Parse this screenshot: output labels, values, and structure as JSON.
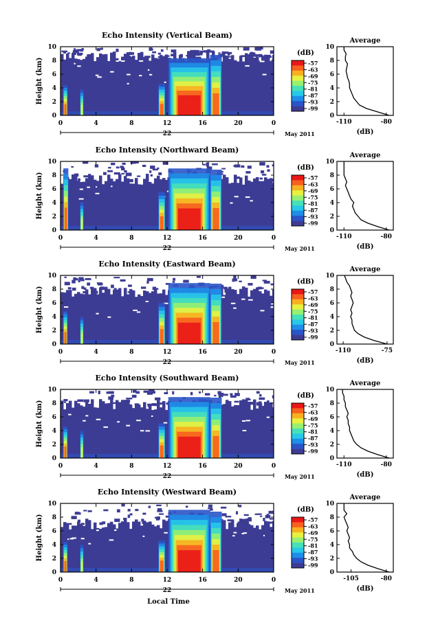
{
  "figure": {
    "x_title": "Local Time",
    "day_label": "22",
    "month_label": "May 2011",
    "colorbar_unit": "(dB)",
    "colorbar_ticks": [
      "-57",
      "-63",
      "-69",
      "-75",
      "-81",
      "-87",
      "-93",
      "-99"
    ],
    "colorbar_colors": [
      "#3d3c94",
      "#2a55c8",
      "#1e8ee8",
      "#28c8e8",
      "#48e0b8",
      "#98f070",
      "#e8f040",
      "#f8b020",
      "#f86020",
      "#e81818"
    ],
    "height_axis_label": "Height (km)",
    "avg_title": "Average",
    "avg_xlabel": "(dB)",
    "empty_color": "#ffffff",
    "background_echo_color": "#3d3c94"
  },
  "chart_data": [
    {
      "type": "heatmap",
      "title": "Echo Intensity (Vertical Beam)",
      "xlabel": "Local Time",
      "ylabel": "Height (km)",
      "xlim": [
        0,
        24
      ],
      "ylim": [
        0,
        10
      ],
      "xticks": [
        "0",
        "4",
        "8",
        "12",
        "16",
        "20",
        "0"
      ],
      "yticks": [
        "0",
        "2",
        "4",
        "6",
        "8",
        "10"
      ],
      "colorbar": {
        "label": "(dB)",
        "ticks": [
          -57,
          -63,
          -69,
          -75,
          -81,
          -87,
          -93,
          -99
        ]
      },
      "echo_top_km": 8.6,
      "convective_cells": [
        {
          "t0": 0.3,
          "t1": 0.8,
          "top_km": 4.8,
          "peak_dB": -63
        },
        {
          "t0": 2.2,
          "t1": 2.6,
          "top_km": 4.2,
          "peak_dB": -69
        },
        {
          "t0": 11.0,
          "t1": 11.8,
          "top_km": 5.0,
          "peak_dB": -63
        },
        {
          "t0": 12.0,
          "t1": 17.0,
          "top_km": 9.0,
          "peak_dB": -57
        },
        {
          "t0": 16.8,
          "t1": 18.2,
          "top_km": 9.6,
          "peak_dB": -63
        }
      ],
      "average_profile": {
        "xlabel": "(dB)",
        "xlim": [
          -115,
          -75
        ],
        "xticks": [
          -110,
          -80
        ],
        "points": [
          [
            -78,
            0.0
          ],
          [
            -86,
            0.5
          ],
          [
            -94,
            1.0
          ],
          [
            -99,
            1.5
          ],
          [
            -101,
            2.0
          ],
          [
            -103,
            2.5
          ],
          [
            -104,
            3.0
          ],
          [
            -105,
            3.5
          ],
          [
            -106,
            4.0
          ],
          [
            -106,
            4.5
          ],
          [
            -106.5,
            5.0
          ],
          [
            -107.5,
            5.5
          ],
          [
            -108,
            6.0
          ],
          [
            -108.5,
            6.5
          ],
          [
            -108,
            7.0
          ],
          [
            -107.5,
            7.5
          ],
          [
            -109,
            8.0
          ],
          [
            -109,
            8.5
          ],
          [
            -108.5,
            9.0
          ],
          [
            -110,
            9.5
          ],
          [
            -110,
            10.0
          ]
        ]
      }
    },
    {
      "type": "heatmap",
      "title": "Echo Intensity (Northward Beam)",
      "xlabel": "Local Time",
      "ylabel": "Height (km)",
      "xlim": [
        0,
        24
      ],
      "ylim": [
        0,
        10
      ],
      "xticks": [
        "0",
        "4",
        "8",
        "12",
        "16",
        "20",
        "0"
      ],
      "yticks": [
        "0",
        "2",
        "4",
        "6",
        "8",
        "10"
      ],
      "colorbar": {
        "label": "(dB)",
        "ticks": [
          -57,
          -63,
          -69,
          -75,
          -81,
          -87,
          -93,
          -99
        ]
      },
      "echo_top_km": 7.4,
      "convective_cells": [
        {
          "t0": 0.3,
          "t1": 0.9,
          "top_km": 9.8,
          "peak_dB": -63
        },
        {
          "t0": 2.2,
          "t1": 2.6,
          "top_km": 4.5,
          "peak_dB": -69
        },
        {
          "t0": 11.0,
          "t1": 11.8,
          "top_km": 6.0,
          "peak_dB": -63
        },
        {
          "t0": 12.0,
          "t1": 17.0,
          "top_km": 9.7,
          "peak_dB": -57
        },
        {
          "t0": 16.8,
          "t1": 18.2,
          "top_km": 9.6,
          "peak_dB": -63
        }
      ],
      "average_profile": {
        "xlabel": "(dB)",
        "xlim": [
          -115,
          -75
        ],
        "xticks": [
          -110,
          -80
        ],
        "points": [
          [
            -78,
            0.0
          ],
          [
            -86,
            0.5
          ],
          [
            -93,
            1.0
          ],
          [
            -98,
            1.5
          ],
          [
            -100,
            2.0
          ],
          [
            -102,
            2.5
          ],
          [
            -103,
            3.0
          ],
          [
            -104,
            3.5
          ],
          [
            -103,
            4.0
          ],
          [
            -105,
            4.5
          ],
          [
            -106,
            5.0
          ],
          [
            -107,
            5.5
          ],
          [
            -108,
            6.0
          ],
          [
            -109,
            6.5
          ],
          [
            -108,
            7.0
          ],
          [
            -109,
            7.5
          ],
          [
            -110,
            8.0
          ],
          [
            -110,
            8.5
          ],
          [
            -110,
            9.0
          ],
          [
            -110,
            9.5
          ],
          [
            -110,
            10.0
          ]
        ]
      }
    },
    {
      "type": "heatmap",
      "title": "Echo Intensity (Eastward Beam)",
      "xlabel": "Local Time",
      "ylabel": "Height (km)",
      "xlim": [
        0,
        24
      ],
      "ylim": [
        0,
        10
      ],
      "xticks": [
        "0",
        "4",
        "8",
        "12",
        "16",
        "20",
        "0"
      ],
      "yticks": [
        "0",
        "2",
        "4",
        "6",
        "8",
        "10"
      ],
      "colorbar": {
        "label": "(dB)",
        "ticks": [
          -57,
          -63,
          -69,
          -75,
          -81,
          -87,
          -93,
          -99
        ]
      },
      "echo_top_km": 7.6,
      "convective_cells": [
        {
          "t0": 0.3,
          "t1": 0.8,
          "top_km": 5.2,
          "peak_dB": -63
        },
        {
          "t0": 2.2,
          "t1": 2.6,
          "top_km": 4.4,
          "peak_dB": -69
        },
        {
          "t0": 11.0,
          "t1": 11.8,
          "top_km": 6.5,
          "peak_dB": -63
        },
        {
          "t0": 12.0,
          "t1": 17.0,
          "top_km": 9.6,
          "peak_dB": -57
        },
        {
          "t0": 16.8,
          "t1": 18.2,
          "top_km": 9.6,
          "peak_dB": -63
        }
      ],
      "average_profile": {
        "xlabel": "(dB)",
        "xlim": [
          -115,
          -70
        ],
        "xticks": [
          -110,
          -75
        ],
        "points": [
          [
            -75,
            0.0
          ],
          [
            -85,
            0.5
          ],
          [
            -93,
            1.0
          ],
          [
            -98,
            1.5
          ],
          [
            -101,
            2.0
          ],
          [
            -102,
            2.5
          ],
          [
            -103,
            3.0
          ],
          [
            -103,
            3.5
          ],
          [
            -104,
            4.0
          ],
          [
            -103,
            4.5
          ],
          [
            -104,
            5.0
          ],
          [
            -103,
            5.5
          ],
          [
            -102,
            6.0
          ],
          [
            -103,
            6.5
          ],
          [
            -104,
            7.0
          ],
          [
            -103,
            7.5
          ],
          [
            -104,
            8.0
          ],
          [
            -105,
            8.5
          ],
          [
            -107,
            9.0
          ],
          [
            -108,
            9.5
          ],
          [
            -109,
            10.0
          ]
        ]
      }
    },
    {
      "type": "heatmap",
      "title": "Echo Intensity (Southward Beam)",
      "xlabel": "Local Time",
      "ylabel": "Height (km)",
      "xlim": [
        0,
        24
      ],
      "ylim": [
        0,
        10
      ],
      "xticks": [
        "0",
        "4",
        "8",
        "12",
        "16",
        "20",
        "0"
      ],
      "yticks": [
        "0",
        "2",
        "4",
        "6",
        "8",
        "10"
      ],
      "colorbar": {
        "label": "(dB)",
        "ticks": [
          -57,
          -63,
          -69,
          -75,
          -81,
          -87,
          -93,
          -99
        ]
      },
      "echo_top_km": 7.8,
      "convective_cells": [
        {
          "t0": 0.3,
          "t1": 0.8,
          "top_km": 5.0,
          "peak_dB": -63
        },
        {
          "t0": 2.2,
          "t1": 2.6,
          "top_km": 4.4,
          "peak_dB": -69
        },
        {
          "t0": 11.0,
          "t1": 11.8,
          "top_km": 5.5,
          "peak_dB": -63
        },
        {
          "t0": 12.0,
          "t1": 17.0,
          "top_km": 9.6,
          "peak_dB": -57
        },
        {
          "t0": 16.8,
          "t1": 18.2,
          "top_km": 9.6,
          "peak_dB": -63
        }
      ],
      "average_profile": {
        "xlabel": "(dB)",
        "xlim": [
          -115,
          -75
        ],
        "xticks": [
          -110,
          -80
        ],
        "points": [
          [
            -78,
            0.0
          ],
          [
            -86,
            0.5
          ],
          [
            -93,
            1.0
          ],
          [
            -98,
            1.5
          ],
          [
            -101,
            2.0
          ],
          [
            -103,
            2.5
          ],
          [
            -104,
            3.0
          ],
          [
            -105,
            3.5
          ],
          [
            -106,
            4.0
          ],
          [
            -106,
            4.5
          ],
          [
            -107,
            5.0
          ],
          [
            -107,
            5.5
          ],
          [
            -108,
            6.0
          ],
          [
            -107,
            6.5
          ],
          [
            -108,
            7.0
          ],
          [
            -109,
            7.5
          ],
          [
            -109,
            8.0
          ],
          [
            -110,
            8.5
          ],
          [
            -110,
            9.0
          ],
          [
            -111,
            9.5
          ],
          [
            -111,
            10.0
          ]
        ]
      }
    },
    {
      "type": "heatmap",
      "title": "Echo Intensity (Westward Beam)",
      "xlabel": "Local Time",
      "ylabel": "Height (km)",
      "xlim": [
        0,
        24
      ],
      "ylim": [
        0,
        10
      ],
      "xticks": [
        "0",
        "4",
        "8",
        "12",
        "16",
        "20",
        "0"
      ],
      "yticks": [
        "0",
        "2",
        "4",
        "6",
        "8",
        "10"
      ],
      "colorbar": {
        "label": "(dB)",
        "ticks": [
          -57,
          -63,
          -69,
          -75,
          -81,
          -87,
          -93,
          -99
        ]
      },
      "echo_top_km": 7.0,
      "convective_cells": [
        {
          "t0": 0.3,
          "t1": 0.8,
          "top_km": 4.8,
          "peak_dB": -63
        },
        {
          "t0": 2.2,
          "t1": 2.6,
          "top_km": 4.4,
          "peak_dB": -69
        },
        {
          "t0": 11.0,
          "t1": 11.8,
          "top_km": 5.0,
          "peak_dB": -63
        },
        {
          "t0": 12.0,
          "t1": 17.0,
          "top_km": 9.8,
          "peak_dB": -57
        },
        {
          "t0": 16.8,
          "t1": 18.2,
          "top_km": 9.6,
          "peak_dB": -63
        }
      ],
      "average_profile": {
        "xlabel": "(dB)",
        "xlim": [
          -115,
          -75
        ],
        "xticks": [
          -105,
          -80
        ],
        "points": [
          [
            -78,
            0.0
          ],
          [
            -86,
            0.5
          ],
          [
            -93,
            1.0
          ],
          [
            -98,
            1.5
          ],
          [
            -101,
            2.0
          ],
          [
            -103,
            2.5
          ],
          [
            -104,
            3.0
          ],
          [
            -106,
            3.5
          ],
          [
            -106,
            4.0
          ],
          [
            -107,
            4.5
          ],
          [
            -106,
            5.0
          ],
          [
            -107,
            5.5
          ],
          [
            -108,
            6.0
          ],
          [
            -107,
            6.5
          ],
          [
            -108,
            7.0
          ],
          [
            -109,
            7.5
          ],
          [
            -110,
            8.0
          ],
          [
            -108,
            8.5
          ],
          [
            -110,
            9.0
          ],
          [
            -110,
            9.5
          ],
          [
            -110,
            10.0
          ]
        ]
      }
    }
  ]
}
